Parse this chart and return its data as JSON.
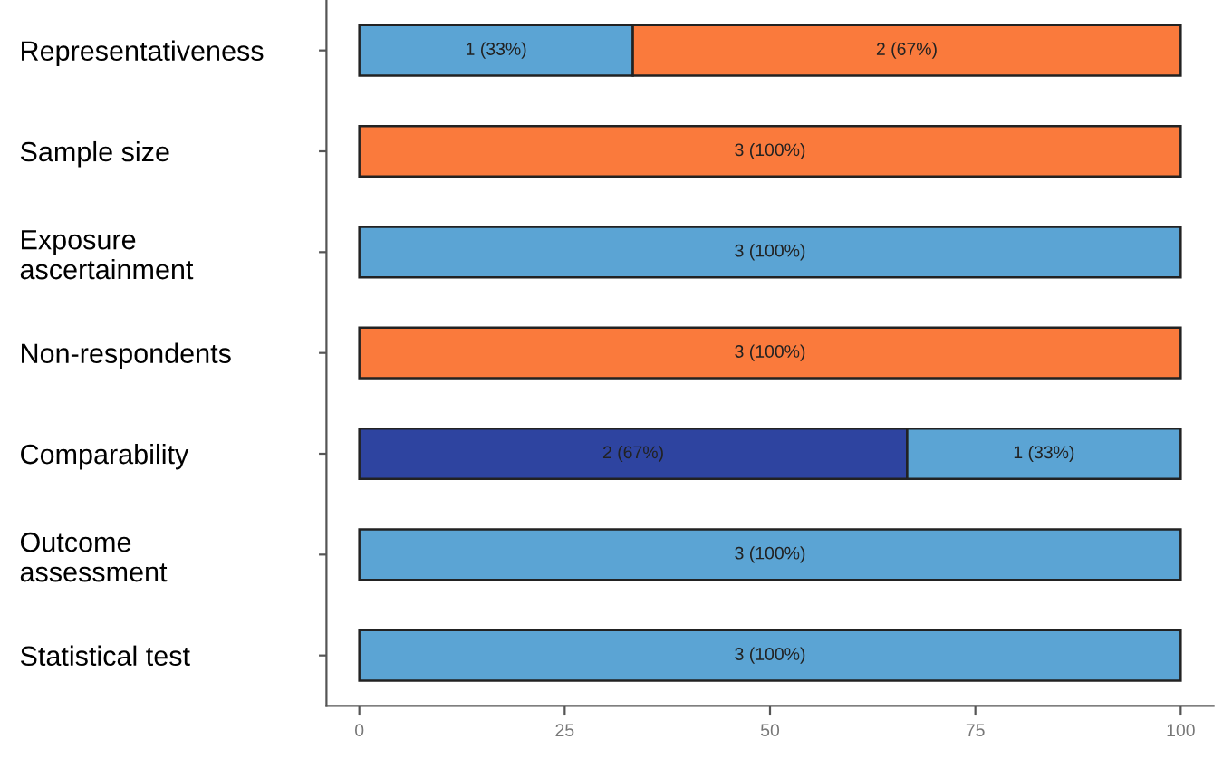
{
  "chart_data": {
    "type": "bar",
    "orientation": "horizontal",
    "stacked": true,
    "categories": [
      "Representativeness",
      "Sample size",
      "Exposure\nascertainment",
      "Non-respondents",
      "Comparability",
      "Outcome\nassessment",
      "Statistical test"
    ],
    "series": [
      {
        "color": "#2e44a0",
        "values": [
          null,
          null,
          null,
          null,
          66.7,
          null,
          null
        ],
        "value_labels": [
          null,
          null,
          null,
          null,
          "2 (67%)",
          null,
          null
        ]
      },
      {
        "color": "#5ba4d4",
        "values": [
          33.3,
          null,
          100,
          null,
          33.3,
          100,
          100
        ],
        "value_labels": [
          "1 (33%)",
          null,
          "3 (100%)",
          null,
          "1 (33%)",
          "3 (100%)",
          "3 (100%)"
        ]
      },
      {
        "color": "#fa7a3c",
        "values": [
          66.7,
          100,
          null,
          100,
          null,
          null,
          null
        ],
        "value_labels": [
          "2 (67%)",
          "3 (100%)",
          null,
          "3 (100%)",
          null,
          null,
          null
        ]
      }
    ],
    "xlim": [
      -4,
      104
    ],
    "xticks": [
      0,
      25,
      50,
      75,
      100
    ],
    "grid": false,
    "legend": false
  }
}
